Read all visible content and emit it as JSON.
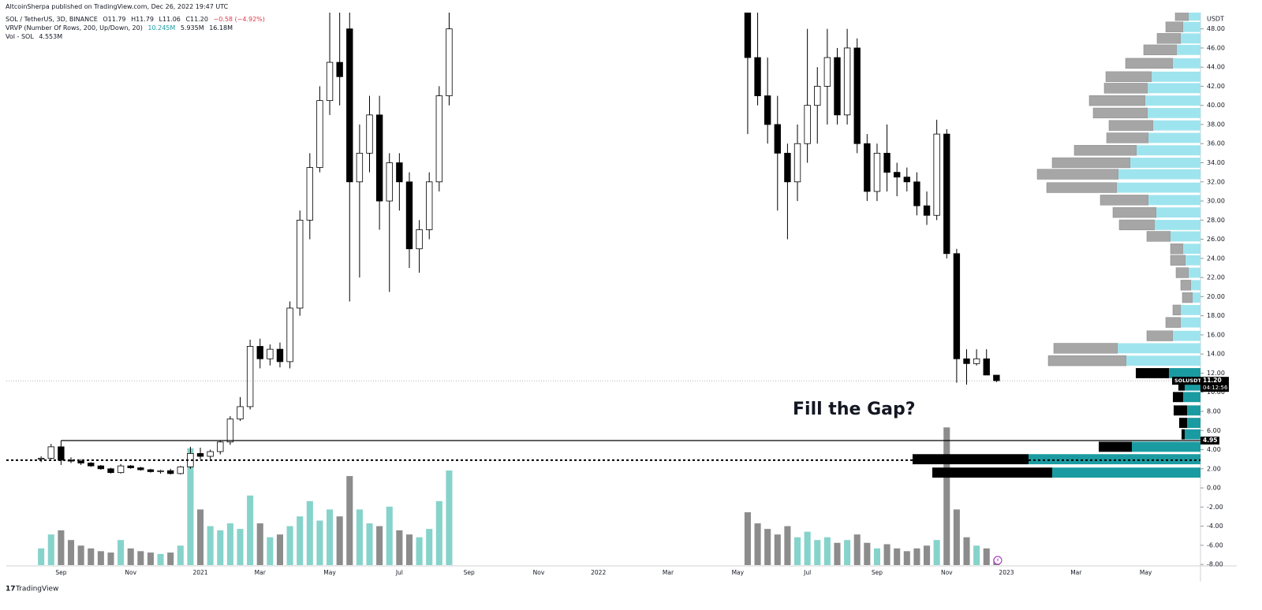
{
  "header": {
    "publisher": "AltcoinSherpa published on TradingView.com, Dec 26, 2022 19:47 UTC",
    "symbol": "SOL / TetherUS, 3D, BINANCE",
    "ohlc": [
      "O11.79",
      "H11.79",
      "L11.06",
      "C11.20",
      "−0.58 (−4.92%)"
    ],
    "indicator": "VRVP (Number Of Rows, 200, Up/Down, 20)",
    "indicator_values": [
      "10.245M",
      "5.935M",
      "16.18M"
    ],
    "volume_label": "Vol - SOL",
    "volume_value": "4.553M"
  },
  "chart_data": {
    "type": "candlestick",
    "y_unit": "USDT",
    "categories": [
      null,
      null,
      null,
      null,
      null,
      "Sep",
      null,
      null,
      null,
      null,
      null,
      null,
      "Nov",
      null,
      null,
      null,
      null,
      null,
      null,
      "2021",
      null,
      null,
      null,
      null,
      null,
      "Mar",
      null,
      null,
      null,
      null,
      null,
      null,
      "May",
      null,
      null,
      null,
      null,
      null,
      null,
      "Jul",
      null,
      null,
      null,
      null,
      null,
      null,
      "Sep",
      null,
      null,
      null,
      null,
      null,
      null,
      "Nov",
      null,
      null,
      null,
      null,
      null,
      "2022",
      null,
      null,
      null,
      null,
      null,
      null,
      "Mar",
      null,
      null,
      null,
      null,
      null,
      null,
      "May",
      null,
      null,
      null,
      null,
      null,
      null,
      "Jul",
      null,
      null,
      null,
      null,
      null,
      null,
      "Sep",
      null,
      null,
      null,
      null,
      null,
      null,
      "Nov",
      null,
      null,
      null,
      null,
      null,
      "2023",
      null,
      null,
      null,
      null,
      null,
      null,
      "Mar",
      null,
      null,
      null,
      null,
      null,
      null,
      "May",
      null,
      null,
      null,
      null,
      null
    ],
    "open": [
      null,
      null,
      null,
      3.0,
      3.1,
      4.3,
      2.9,
      2.8,
      2.6,
      2.3,
      2.0,
      1.6,
      2.3,
      2.1,
      1.9,
      1.7,
      1.8,
      1.5,
      2.2,
      3.6,
      3.3,
      3.8,
      4.8,
      7.2,
      8.5,
      14.8,
      13.5,
      14.5,
      13.2,
      18.8,
      28.0,
      33.5,
      40.5,
      44.5,
      48.0,
      32.0,
      35.0,
      39.0,
      30.0,
      34.0,
      32.0,
      25.0,
      27.0,
      32.0,
      41.0,
      null,
      null,
      null,
      null,
      null,
      null,
      null,
      null,
      null,
      null,
      null,
      null,
      null,
      null,
      null,
      null,
      null,
      null,
      null,
      null,
      null,
      null,
      null,
      null,
      null,
      null,
      null,
      null,
      null,
      55,
      45,
      41,
      38,
      35,
      32,
      36,
      40,
      42,
      45,
      39,
      46,
      36,
      31,
      35,
      33,
      32.5,
      32,
      29.5,
      28.5,
      37,
      24.5,
      13.5,
      13.0,
      13.5,
      11.79,
      null,
      null,
      null,
      null,
      null,
      null,
      null,
      null,
      null,
      null,
      null,
      null,
      null,
      null,
      null,
      null,
      null,
      null,
      null,
      null
    ],
    "high": [
      null,
      null,
      null,
      3.3,
      4.6,
      4.5,
      3.2,
      3.0,
      2.7,
      2.4,
      2.1,
      2.5,
      2.4,
      2.2,
      2.0,
      1.9,
      2.0,
      2.3,
      4.3,
      4.2,
      4.0,
      5.0,
      7.5,
      9.5,
      15.5,
      15.6,
      15.0,
      15.2,
      19.5,
      29.0,
      35.0,
      42.0,
      50.5,
      52.0,
      50.5,
      38.0,
      41.0,
      41.0,
      35.0,
      35.0,
      33.0,
      28.0,
      33.0,
      42.0,
      50.5,
      null,
      null,
      null,
      null,
      null,
      null,
      null,
      null,
      null,
      null,
      null,
      null,
      null,
      null,
      null,
      null,
      null,
      null,
      null,
      null,
      null,
      null,
      null,
      null,
      null,
      null,
      null,
      null,
      null,
      58,
      50,
      45,
      41,
      36,
      38,
      48,
      44,
      48,
      46,
      48,
      47,
      37,
      36,
      38,
      34,
      33.5,
      33,
      31,
      38.5,
      37.5,
      25,
      14.5,
      14.5,
      14.5,
      11.79,
      null,
      null,
      null,
      null,
      null,
      null,
      null,
      null,
      null,
      null,
      null,
      null,
      null,
      null,
      null,
      null,
      null,
      null,
      null,
      null
    ],
    "low": [
      null,
      null,
      null,
      2.7,
      3.0,
      2.4,
      2.6,
      2.4,
      2.2,
      1.9,
      1.5,
      1.5,
      2.0,
      1.8,
      1.6,
      1.5,
      1.4,
      1.4,
      2.0,
      3.0,
      3.0,
      3.5,
      4.5,
      7.0,
      8.2,
      12.5,
      12.8,
      12.6,
      12.5,
      18.0,
      26.0,
      33.0,
      39.0,
      40.0,
      19.5,
      22.0,
      33.0,
      27.0,
      20.5,
      29.0,
      23.0,
      22.5,
      26.0,
      31.0,
      40.0,
      null,
      null,
      null,
      null,
      null,
      null,
      null,
      null,
      null,
      null,
      null,
      null,
      null,
      null,
      null,
      null,
      null,
      null,
      null,
      null,
      null,
      null,
      null,
      null,
      null,
      null,
      null,
      null,
      null,
      37,
      40,
      36,
      29,
      26,
      30,
      34,
      36,
      38,
      38,
      38,
      35,
      30,
      30,
      31,
      30.5,
      31,
      28.5,
      27.5,
      28,
      24,
      11,
      10.8,
      12.8,
      11.8,
      11.06,
      null,
      null,
      null,
      null,
      null,
      null,
      null,
      null,
      null,
      null,
      null,
      null,
      null,
      null,
      null,
      null,
      null,
      null,
      null,
      null
    ],
    "close": [
      null,
      null,
      null,
      3.1,
      4.3,
      2.9,
      2.8,
      2.6,
      2.3,
      2.0,
      1.6,
      2.3,
      2.1,
      1.9,
      1.7,
      1.8,
      1.5,
      2.2,
      3.6,
      3.3,
      3.8,
      4.8,
      7.2,
      8.5,
      14.8,
      13.5,
      14.5,
      13.2,
      18.8,
      28.0,
      33.5,
      40.5,
      44.5,
      43.0,
      32.0,
      35.0,
      39.0,
      30.0,
      34.0,
      32.0,
      25.0,
      27.0,
      32.0,
      41.0,
      48.0,
      null,
      null,
      null,
      null,
      null,
      null,
      null,
      null,
      null,
      null,
      null,
      null,
      null,
      null,
      null,
      null,
      null,
      null,
      null,
      null,
      null,
      null,
      null,
      null,
      null,
      null,
      null,
      null,
      null,
      45,
      41,
      38,
      35,
      32,
      36,
      40,
      42,
      45,
      39,
      46,
      36,
      31,
      35,
      33,
      32.5,
      32,
      29.5,
      28.5,
      37,
      24.5,
      13.5,
      13.0,
      13.5,
      11.8,
      11.2,
      null,
      null,
      null,
      null,
      null,
      null,
      null,
      null,
      null,
      null,
      null,
      null,
      null,
      null,
      null,
      null,
      null,
      null,
      null,
      null
    ],
    "volume": [
      null,
      null,
      null,
      12,
      22,
      25,
      18,
      14,
      12,
      10,
      9,
      18,
      12,
      10,
      9,
      8,
      9,
      14,
      84,
      40,
      28,
      25,
      30,
      26,
      50,
      30,
      20,
      22,
      28,
      35,
      46,
      32,
      40,
      35,
      64,
      40,
      30,
      28,
      42,
      25,
      22,
      20,
      26,
      46,
      68,
      null,
      null,
      null,
      null,
      null,
      null,
      null,
      null,
      null,
      null,
      null,
      null,
      null,
      null,
      null,
      null,
      null,
      null,
      null,
      null,
      null,
      null,
      null,
      null,
      null,
      null,
      null,
      null,
      null,
      38,
      30,
      26,
      22,
      28,
      20,
      24,
      18,
      20,
      16,
      18,
      22,
      16,
      12,
      15,
      12,
      10,
      12,
      14,
      18,
      99,
      40,
      20,
      14,
      12,
      4.553,
      null,
      null,
      null,
      null,
      null,
      null,
      null,
      null,
      null,
      null,
      null,
      null,
      null,
      null,
      null,
      null,
      null,
      null,
      null,
      null
    ],
    "up_color": "#ffffff",
    "down_color": "#000000",
    "volume_up_color": "#86d3cb",
    "volume_down_color": "#8c8c8c",
    "vlim": [
      0,
      170
    ],
    "ylim": [
      -8.07,
      49.7
    ],
    "yticks": [
      {
        "value": -8,
        "label": "-8.00"
      },
      {
        "value": -6,
        "label": "-6.00"
      },
      {
        "value": -4,
        "label": "-4.00"
      },
      {
        "value": -2,
        "label": "-2.00"
      },
      {
        "value": 0,
        "label": "0.00"
      },
      {
        "value": 2,
        "label": "2.00"
      },
      {
        "value": 4,
        "label": "4.00"
      },
      {
        "value": 6,
        "label": "6.00"
      },
      {
        "value": 8,
        "label": "8.00"
      },
      {
        "value": 10,
        "label": "10.00"
      },
      {
        "value": 12,
        "label": "12.00"
      },
      {
        "value": 14,
        "label": "14.00"
      },
      {
        "value": 16,
        "label": "16.00"
      },
      {
        "value": 18,
        "label": "18.00"
      },
      {
        "value": 20,
        "label": "20.00"
      },
      {
        "value": 22,
        "label": "22.00"
      },
      {
        "value": 24,
        "label": "24.00"
      },
      {
        "value": 26,
        "label": "26.00"
      },
      {
        "value": 28,
        "label": "28.00"
      },
      {
        "value": 30,
        "label": "30.00"
      },
      {
        "value": 32,
        "label": "32.00"
      },
      {
        "value": 34,
        "label": "34.00"
      },
      {
        "value": 36,
        "label": "36.00"
      },
      {
        "value": 38,
        "label": "38.00"
      },
      {
        "value": 40,
        "label": "40.00"
      },
      {
        "value": 42,
        "label": "42.00"
      },
      {
        "value": 44,
        "label": "44.00"
      },
      {
        "value": 46,
        "label": "46.00"
      },
      {
        "value": 48,
        "label": "48.00"
      }
    ],
    "grid": false,
    "volume_profile": {
      "xlim": [
        0,
        420
      ],
      "levels": [
        49.4,
        48.2,
        47.0,
        45.8,
        44.4,
        43.0,
        41.8,
        40.5,
        39.2,
        37.9,
        36.6,
        35.3,
        34.0,
        32.8,
        31.4,
        30.1,
        28.8,
        27.5,
        26.3,
        25.0,
        23.8,
        22.5,
        21.2,
        19.9,
        18.6,
        17.3,
        15.9,
        14.6,
        13.3,
        12.0,
        10.7,
        9.5,
        8.1,
        6.8,
        5.6,
        4.3,
        3.0,
        1.6
      ],
      "down": [
        17,
        22,
        30,
        42,
        60,
        58,
        55,
        71,
        69,
        56,
        53,
        79,
        99,
        103,
        89,
        61,
        55,
        45,
        30,
        16,
        19,
        16,
        13,
        13,
        10,
        19,
        33,
        81,
        99,
        42,
        8,
        13,
        17,
        10,
        4,
        42,
        147,
        152
      ],
      "up": [
        15,
        22,
        25,
        30,
        35,
        62,
        67,
        70,
        67,
        60,
        66,
        81,
        89,
        104,
        106,
        66,
        56,
        58,
        38,
        22,
        19,
        15,
        12,
        10,
        25,
        25,
        35,
        105,
        94,
        40,
        20,
        22,
        17,
        17,
        20,
        87,
        218,
        188
      ],
      "up_color": "#9ee4ee",
      "down_color": "#a6a6a6",
      "up_color_below": "#1a9ba1",
      "down_color_below": "#000000"
    },
    "current_price": {
      "value": 11.2,
      "label": "11.20"
    },
    "symbol_tag": "SOLUSDT",
    "countdown": "04:12:56",
    "hlines": [
      {
        "value": 4.95,
        "style": "solid"
      },
      {
        "value": 2.9,
        "style": "dotted"
      }
    ],
    "annotations": [
      {
        "text": "Fill the Gap?"
      }
    ]
  },
  "footer": {
    "brand": "TradingView"
  }
}
